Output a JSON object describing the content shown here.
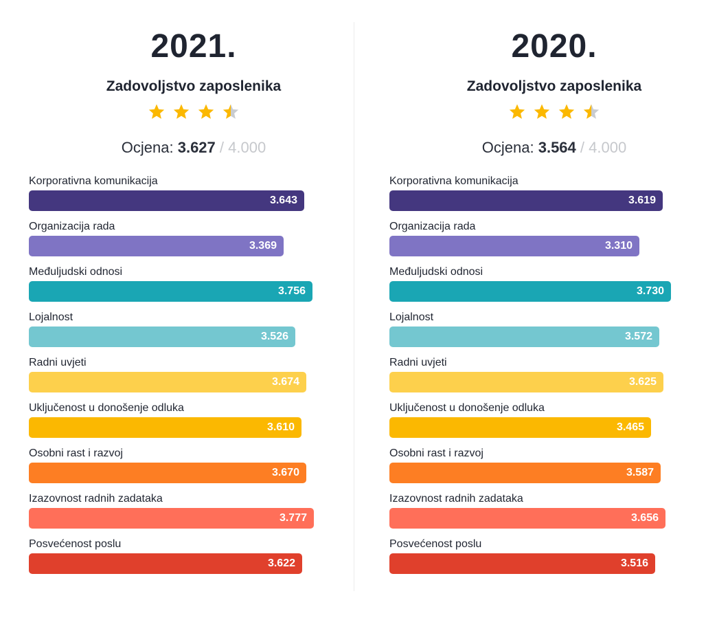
{
  "chart_data": [
    {
      "type": "bar",
      "orientation": "horizontal",
      "title": "2021.",
      "subtitle": "Zadovoljstvo zaposlenika",
      "rating": 3.627,
      "rating_label": "Ocjena:",
      "rating_value": "3.627",
      "rating_separator": "/",
      "rating_max": "4.000",
      "stars": 3.5,
      "categories": [
        "Korporativna komunikacija",
        "Organizacija rada",
        "Međuljudski odnosi",
        "Lojalnost",
        "Radni uvjeti",
        "Uključenost u donošenje odluka",
        "Osobni rast i razvoj",
        "Izazovnost radnih zadataka",
        "Posvećenost poslu"
      ],
      "values": [
        3.643,
        3.369,
        3.756,
        3.526,
        3.674,
        3.61,
        3.67,
        3.777,
        3.622
      ],
      "value_labels": [
        "3.643",
        "3.369",
        "3.756",
        "3.526",
        "3.674",
        "3.610",
        "3.670",
        "3.777",
        "3.622"
      ],
      "colors": [
        "#44377f",
        "#7f74c4",
        "#1aa6b4",
        "#74c7d0",
        "#fdd04c",
        "#fbb801",
        "#fd7e23",
        "#ff6f59",
        "#e0402c"
      ]
    },
    {
      "type": "bar",
      "orientation": "horizontal",
      "title": "2020.",
      "subtitle": "Zadovoljstvo zaposlenika",
      "rating": 3.564,
      "rating_label": "Ocjena:",
      "rating_value": "3.564",
      "rating_separator": "/",
      "rating_max": "4.000",
      "stars": 3.5,
      "categories": [
        "Korporativna komunikacija",
        "Organizacija rada",
        "Međuljudski odnosi",
        "Lojalnost",
        "Radni uvjeti",
        "Uključenost u donošenje odluka",
        "Osobni rast i razvoj",
        "Izazovnost radnih zadataka",
        "Posvećenost poslu"
      ],
      "values": [
        3.619,
        3.31,
        3.73,
        3.572,
        3.625,
        3.465,
        3.587,
        3.656,
        3.516
      ],
      "value_labels": [
        "3.619",
        "3.310",
        "3.730",
        "3.572",
        "3.625",
        "3.465",
        "3.587",
        "3.656",
        "3.516"
      ],
      "colors": [
        "#44377f",
        "#7f74c4",
        "#1aa6b4",
        "#74c7d0",
        "#fdd04c",
        "#fbb801",
        "#fd7e23",
        "#ff6f59",
        "#e0402c"
      ]
    }
  ],
  "star_colors": {
    "filled": "#fbb801",
    "empty": "#c9ccd0"
  }
}
